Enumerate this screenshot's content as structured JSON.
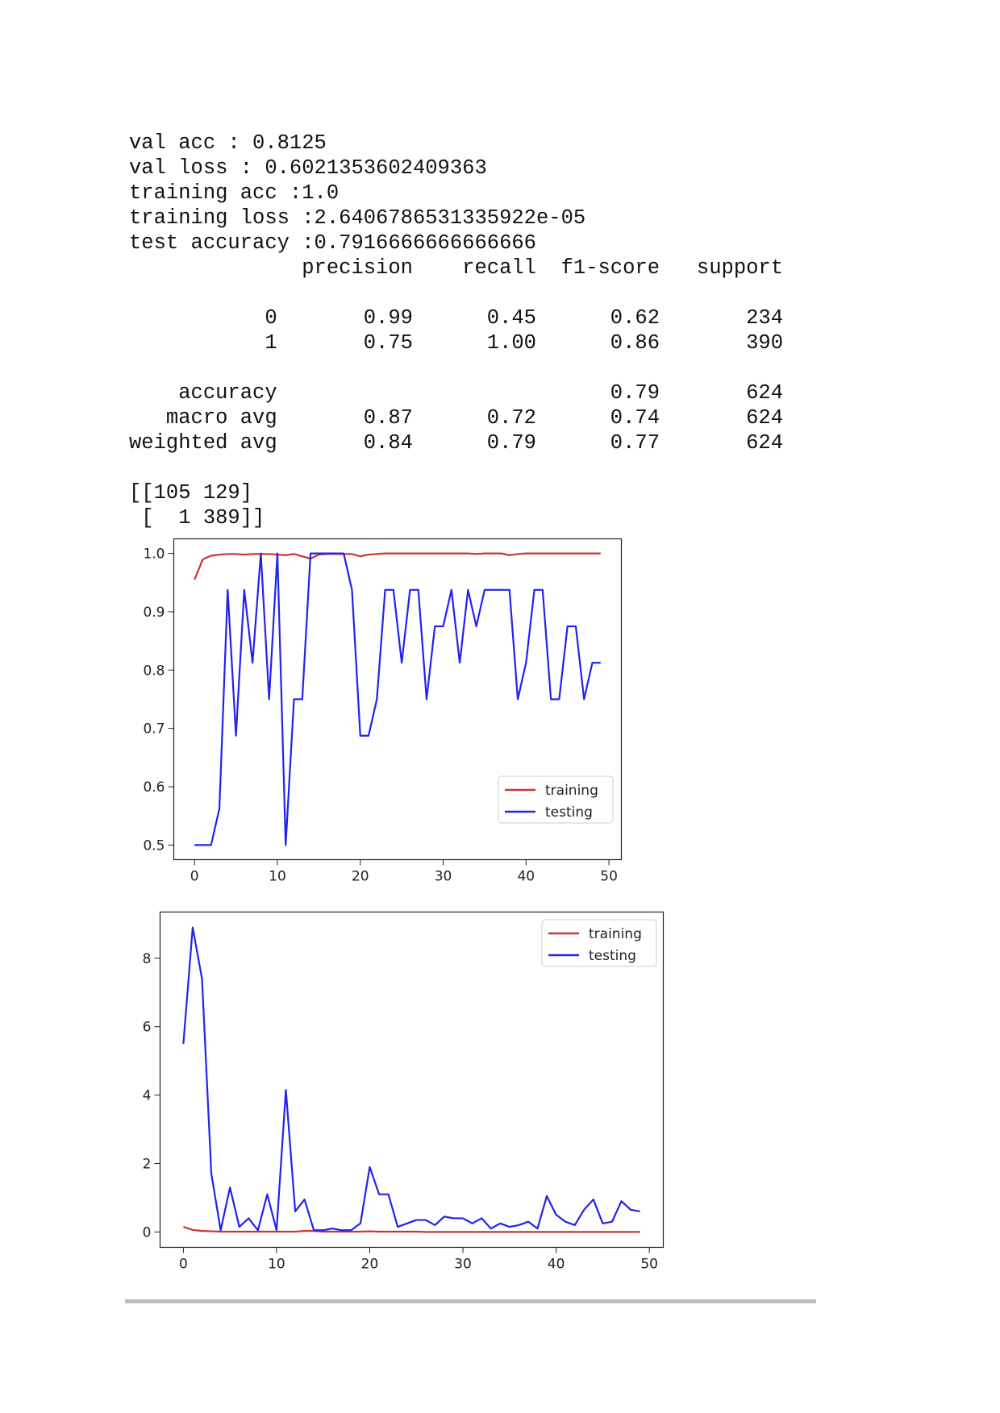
{
  "output": {
    "lines": [
      "val acc : 0.8125",
      "val loss : 0.6021353602409363",
      "training acc :1.0",
      "training loss :2.6406786531335922e-05",
      "test accuracy :0.7916666666666666",
      "              precision    recall  f1-score   support",
      "",
      "           0       0.99      0.45      0.62       234",
      "           1       0.75      1.00      0.86       390",
      "",
      "    accuracy                           0.79       624",
      "   macro avg       0.87      0.72      0.74       624",
      "weighted avg       0.84      0.79      0.77       624",
      "",
      "[[105 129]",
      " [  1 389]]"
    ]
  },
  "chart_data": [
    {
      "type": "line",
      "title": "",
      "xlabel": "",
      "ylabel": "",
      "xlim": [
        -2.5,
        51.5
      ],
      "ylim": [
        0.475,
        1.025
      ],
      "xticks": [
        0,
        10,
        20,
        30,
        40,
        50
      ],
      "yticks": [
        0.5,
        0.6,
        0.7,
        0.8,
        0.9,
        1.0
      ],
      "ytick_labels": [
        "0.5",
        "0.6",
        "0.7",
        "0.8",
        "0.9",
        "1.0"
      ],
      "legend": "lower-right",
      "x": [
        0,
        1,
        2,
        3,
        4,
        5,
        6,
        7,
        8,
        9,
        10,
        11,
        12,
        13,
        14,
        15,
        16,
        17,
        18,
        19,
        20,
        21,
        22,
        23,
        24,
        25,
        26,
        27,
        28,
        29,
        30,
        31,
        32,
        33,
        34,
        35,
        36,
        37,
        38,
        39,
        40,
        41,
        42,
        43,
        44,
        45,
        46,
        47,
        48,
        49
      ],
      "series": [
        {
          "name": "training",
          "color": "#cc3333",
          "values": [
            0.955,
            0.99,
            0.996,
            0.998,
            0.999,
            0.999,
            0.998,
            0.999,
            0.999,
            0.999,
            0.998,
            0.997,
            0.999,
            0.995,
            0.991,
            0.998,
            0.999,
            0.999,
            0.999,
            0.999,
            0.995,
            0.998,
            0.999,
            1.0,
            1.0,
            1.0,
            1.0,
            1.0,
            1.0,
            1.0,
            1.0,
            1.0,
            1.0,
            1.0,
            0.999,
            1.0,
            1.0,
            1.0,
            0.997,
            0.999,
            1.0,
            1.0,
            1.0,
            1.0,
            1.0,
            1.0,
            1.0,
            1.0,
            1.0,
            1.0
          ]
        },
        {
          "name": "testing",
          "color": "#2222ee",
          "values": [
            0.5,
            0.5,
            0.5,
            0.5625,
            0.9375,
            0.6875,
            0.9375,
            0.8125,
            1.0,
            0.75,
            1.0,
            0.5,
            0.75,
            0.75,
            1.0,
            1.0,
            1.0,
            1.0,
            1.0,
            0.9375,
            0.6875,
            0.6875,
            0.75,
            0.9375,
            0.9375,
            0.8125,
            0.9375,
            0.9375,
            0.75,
            0.875,
            0.875,
            0.9375,
            0.8125,
            0.9375,
            0.875,
            0.9375,
            0.9375,
            0.9375,
            0.9375,
            0.75,
            0.8125,
            0.9375,
            0.9375,
            0.75,
            0.75,
            0.875,
            0.875,
            0.75,
            0.8125,
            0.8125
          ]
        }
      ]
    },
    {
      "type": "line",
      "title": "",
      "xlabel": "",
      "ylabel": "",
      "xlim": [
        -2.5,
        51.5
      ],
      "ylim": [
        -0.45,
        9.35
      ],
      "xticks": [
        0,
        10,
        20,
        30,
        40,
        50
      ],
      "yticks": [
        0,
        2,
        4,
        6,
        8
      ],
      "ytick_labels": [
        "0",
        "2",
        "4",
        "6",
        "8"
      ],
      "legend": "upper-right",
      "x": [
        0,
        1,
        2,
        3,
        4,
        5,
        6,
        7,
        8,
        9,
        10,
        11,
        12,
        13,
        14,
        15,
        16,
        17,
        18,
        19,
        20,
        21,
        22,
        23,
        24,
        25,
        26,
        27,
        28,
        29,
        30,
        31,
        32,
        33,
        34,
        35,
        36,
        37,
        38,
        39,
        40,
        41,
        42,
        43,
        44,
        45,
        46,
        47,
        48,
        49
      ],
      "series": [
        {
          "name": "training",
          "color": "#cc3333",
          "values": [
            0.15,
            0.06,
            0.03,
            0.02,
            0.01,
            0.01,
            0.01,
            0.01,
            0.01,
            0.01,
            0.01,
            0.01,
            0.01,
            0.03,
            0.03,
            0.01,
            0.01,
            0.01,
            0.01,
            0.01,
            0.02,
            0.01,
            0.01,
            0.01,
            0.01,
            0.01,
            0.0,
            0.0,
            0.0,
            0.0,
            0.0,
            0.0,
            0.0,
            0.0,
            0.0,
            0.0,
            0.0,
            0.0,
            0.0,
            0.0,
            0.0,
            0.0,
            0.0,
            0.0,
            0.0,
            0.0,
            0.0,
            0.0,
            0.0,
            0.0
          ]
        },
        {
          "name": "testing",
          "color": "#2222ee",
          "values": [
            5.5,
            8.9,
            7.4,
            1.7,
            0.05,
            1.3,
            0.15,
            0.4,
            0.05,
            1.1,
            0.05,
            4.15,
            0.6,
            0.95,
            0.05,
            0.05,
            0.1,
            0.05,
            0.05,
            0.25,
            1.9,
            1.1,
            1.1,
            0.15,
            0.25,
            0.35,
            0.35,
            0.2,
            0.45,
            0.4,
            0.4,
            0.25,
            0.4,
            0.1,
            0.25,
            0.15,
            0.2,
            0.3,
            0.1,
            1.05,
            0.5,
            0.3,
            0.2,
            0.65,
            0.95,
            0.25,
            0.3,
            0.9,
            0.65,
            0.6
          ]
        }
      ]
    }
  ]
}
